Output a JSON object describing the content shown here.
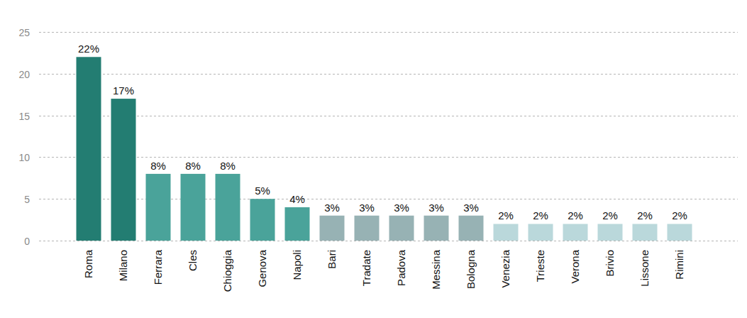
{
  "chart_data": {
    "type": "bar",
    "categories": [
      "Roma",
      "Milano",
      "Ferrara",
      "Cles",
      "Chioggia",
      "Genova",
      "Napoli",
      "Bari",
      "Tradate",
      "Padova",
      "Messina",
      "Bologna",
      "Venezia",
      "Trieste",
      "Verona",
      "Brivio",
      "Lissone",
      "Rimini"
    ],
    "values": [
      22,
      17,
      8,
      8,
      8,
      5,
      4,
      3,
      3,
      3,
      3,
      3,
      2,
      2,
      2,
      2,
      2,
      2
    ],
    "value_labels": [
      "22%",
      "17%",
      "8%",
      "8%",
      "8%",
      "5%",
      "4%",
      "3%",
      "3%",
      "3%",
      "3%",
      "3%",
      "2%",
      "2%",
      "2%",
      "2%",
      "2%",
      "2%"
    ],
    "colors": [
      "#237d72",
      "#237d72",
      "#4aa39a",
      "#4aa39a",
      "#4aa39a",
      "#4aa39a",
      "#4aa39a",
      "#97b2b4",
      "#97b2b4",
      "#97b2b4",
      "#97b2b4",
      "#97b2b4",
      "#bad8db",
      "#bad8db",
      "#bad8db",
      "#bad8db",
      "#bad8db",
      "#bad8db"
    ],
    "ylim": [
      0,
      25
    ],
    "yticks": [
      0,
      5,
      10,
      15,
      20,
      25
    ],
    "grid": true,
    "data_labels": true
  }
}
